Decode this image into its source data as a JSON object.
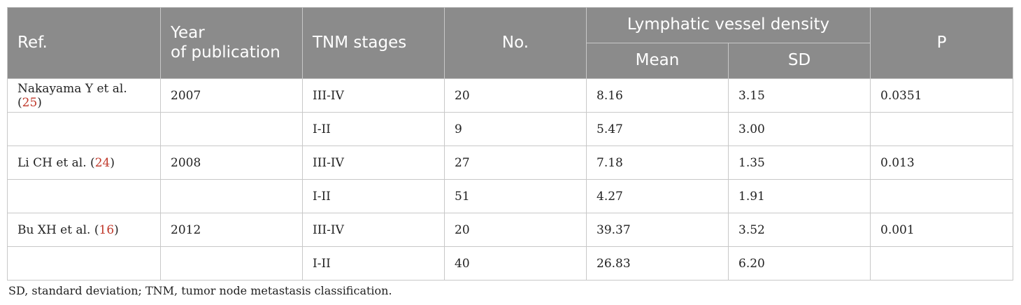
{
  "header": {
    "ref": "Ref.",
    "year_line1": "Year",
    "year_line2": "of publication",
    "tnm": "TNM stages",
    "no": "No.",
    "lvd": "Lymphatic vessel density",
    "mean": "Mean",
    "sd": "SD",
    "p": "P"
  },
  "rows": [
    {
      "ref_text": "Nakayama Y et al. (",
      "ref_num": "25",
      "ref_close": ")",
      "year": "2007",
      "stage": "III-IV",
      "no": "20",
      "mean": "8.16",
      "sd": "3.15",
      "p": "0.0351"
    },
    {
      "ref_text": "",
      "ref_num": "",
      "ref_close": "",
      "year": "",
      "stage": "I-II",
      "no": "9",
      "mean": "5.47",
      "sd": "3.00",
      "p": ""
    },
    {
      "ref_text": "Li CH et al. (",
      "ref_num": "24",
      "ref_close": ")",
      "year": "2008",
      "stage": "III-IV",
      "no": "27",
      "mean": "7.18",
      "sd": "1.35",
      "p": "0.013"
    },
    {
      "ref_text": "",
      "ref_num": "",
      "ref_close": "",
      "year": "",
      "stage": "I-II",
      "no": "51",
      "mean": "4.27",
      "sd": "1.91",
      "p": ""
    },
    {
      "ref_text": "Bu XH et al. (",
      "ref_num": "16",
      "ref_close": ")",
      "year": "2012",
      "stage": "III-IV",
      "no": "20",
      "mean": "39.37",
      "sd": "3.52",
      "p": "0.001"
    },
    {
      "ref_text": "",
      "ref_num": "",
      "ref_close": "",
      "year": "",
      "stage": "I-II",
      "no": "40",
      "mean": "26.83",
      "sd": "6.20",
      "p": ""
    }
  ],
  "footnote": "SD, standard deviation; TNM, tumor node metastasis classification.",
  "colors": {
    "header_bg": "#8b8b8b",
    "header_text": "#ffffff",
    "ref_link": "#c0392b",
    "border": "#c8c8c8"
  }
}
